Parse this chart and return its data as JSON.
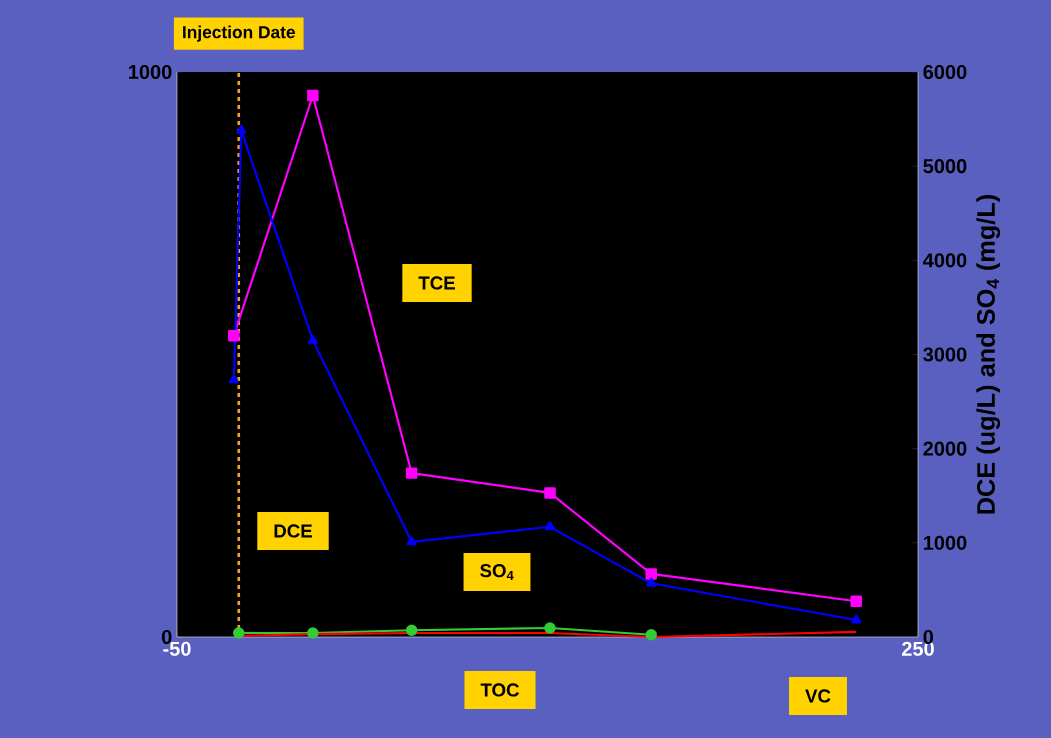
{
  "chart_data": {
    "type": "line",
    "ylabel": null,
    "y2label": "DCE (ug/L) and SO$_{4}$ (mg/L)",
    "annotations": [
      "TCE",
      "DCE",
      "SO$_{4}$",
      "TOC",
      "VC"
    ],
    "xlim": [
      -50,
      250
    ],
    "xticks": [
      -50,
      250
    ],
    "ylim": [
      0,
      1000
    ],
    "yticks": [
      0,
      1000
    ],
    "y2lim": [
      0,
      6000
    ],
    "y2ticks": [
      0,
      1000,
      2000,
      3000,
      4000,
      5000,
      6000
    ],
    "grid": false,
    "ref_lines": [
      {
        "axis": "x",
        "value": -25,
        "label": "Injection Date",
        "color": "#f7a21b",
        "line_style": "dashed"
      }
    ],
    "series": [
      {
        "color": "#ff00ff",
        "axis": "y2",
        "marker": "square",
        "x": [
          -27,
          5,
          45,
          101,
          142,
          225
        ],
        "values": [
          3200,
          5750,
          1740,
          1530,
          670,
          380
        ]
      },
      {
        "color": "#0000ff",
        "axis": "y2",
        "marker": "triangle",
        "x": [
          -27,
          -24,
          5,
          45,
          101,
          142,
          225
        ],
        "values": [
          2730,
          5380,
          3150,
          1010,
          1170,
          570,
          180
        ]
      },
      {
        "color": "#33cc33",
        "axis": "y",
        "marker": "circle",
        "x": [
          -25,
          5,
          45,
          101,
          142
        ],
        "values": [
          7,
          7,
          12,
          16,
          4
        ]
      },
      {
        "color": "#ff0000",
        "axis": "y",
        "marker": "none",
        "x": [
          -25,
          5,
          45,
          101,
          142,
          225
        ],
        "values": [
          2,
          5,
          7,
          7,
          0,
          9
        ]
      }
    ]
  }
}
